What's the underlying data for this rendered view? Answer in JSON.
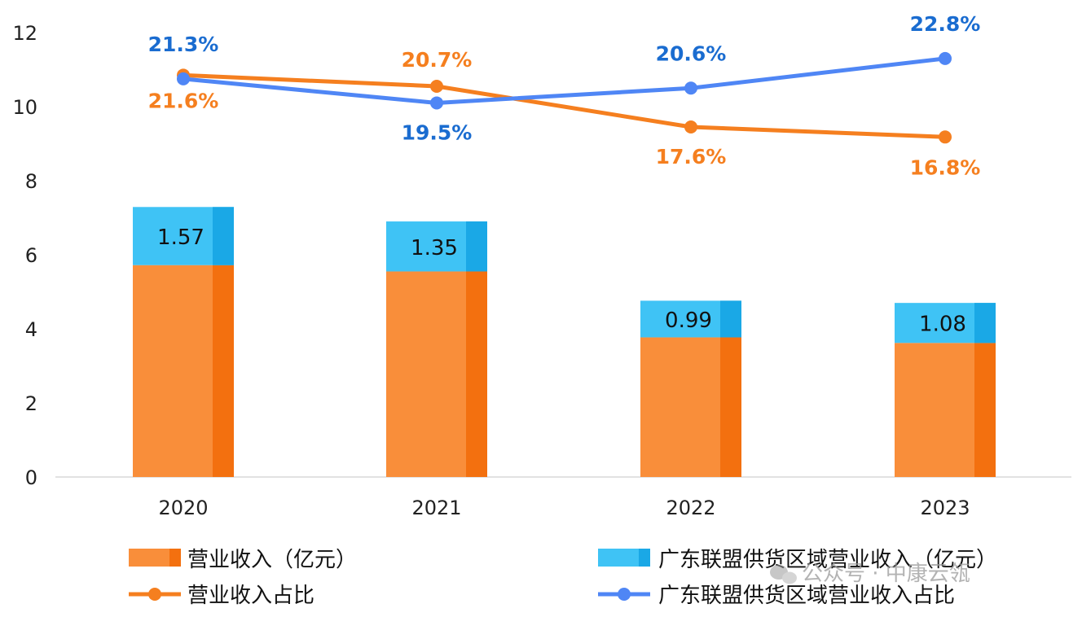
{
  "chart_data": {
    "type": "bar",
    "categories": [
      "2020",
      "2021",
      "2022",
      "2023"
    ],
    "y_ticks": [
      "0",
      "2",
      "4",
      "6",
      "8",
      "10",
      "12"
    ],
    "ylim": [
      0,
      12
    ],
    "series": [
      {
        "name": "营业收入（亿元）",
        "kind": "bar",
        "color": "#F98E3A",
        "shade": "#F3700F",
        "values": [
          5.72,
          5.55,
          3.77,
          3.62
        ]
      },
      {
        "name": "广东联盟供货区域营业收入（亿元）",
        "kind": "bar",
        "stacked": true,
        "color": "#3FC3F5",
        "shade": "#1AA8E6",
        "values": [
          1.57,
          1.35,
          0.99,
          1.08
        ],
        "labels": [
          "1.57",
          "1.35",
          "0.99",
          "1.08"
        ]
      },
      {
        "name": "营业收入占比",
        "kind": "line",
        "color": "#F57F1F",
        "values": [
          21.6,
          20.7,
          17.6,
          16.8
        ],
        "labels": [
          "21.6%",
          "20.7%",
          "17.6%",
          "16.8%"
        ]
      },
      {
        "name": "广东联盟供货区域营业收入占比",
        "kind": "line",
        "color": "#4F86F5",
        "label_color": "#1A6CD0",
        "values": [
          21.3,
          19.5,
          20.6,
          22.8
        ],
        "labels": [
          "21.3%",
          "19.5%",
          "20.6%",
          "22.8%"
        ]
      }
    ],
    "line_plot_y": [
      [
        10.85,
        10.55,
        9.45,
        9.18
      ],
      [
        10.75,
        10.1,
        10.5,
        11.3
      ]
    ],
    "legend_position": "bottom",
    "grid": false
  },
  "watermark": {
    "icon": "wechat-icon",
    "text": "公众号 · 中康云瓴"
  }
}
